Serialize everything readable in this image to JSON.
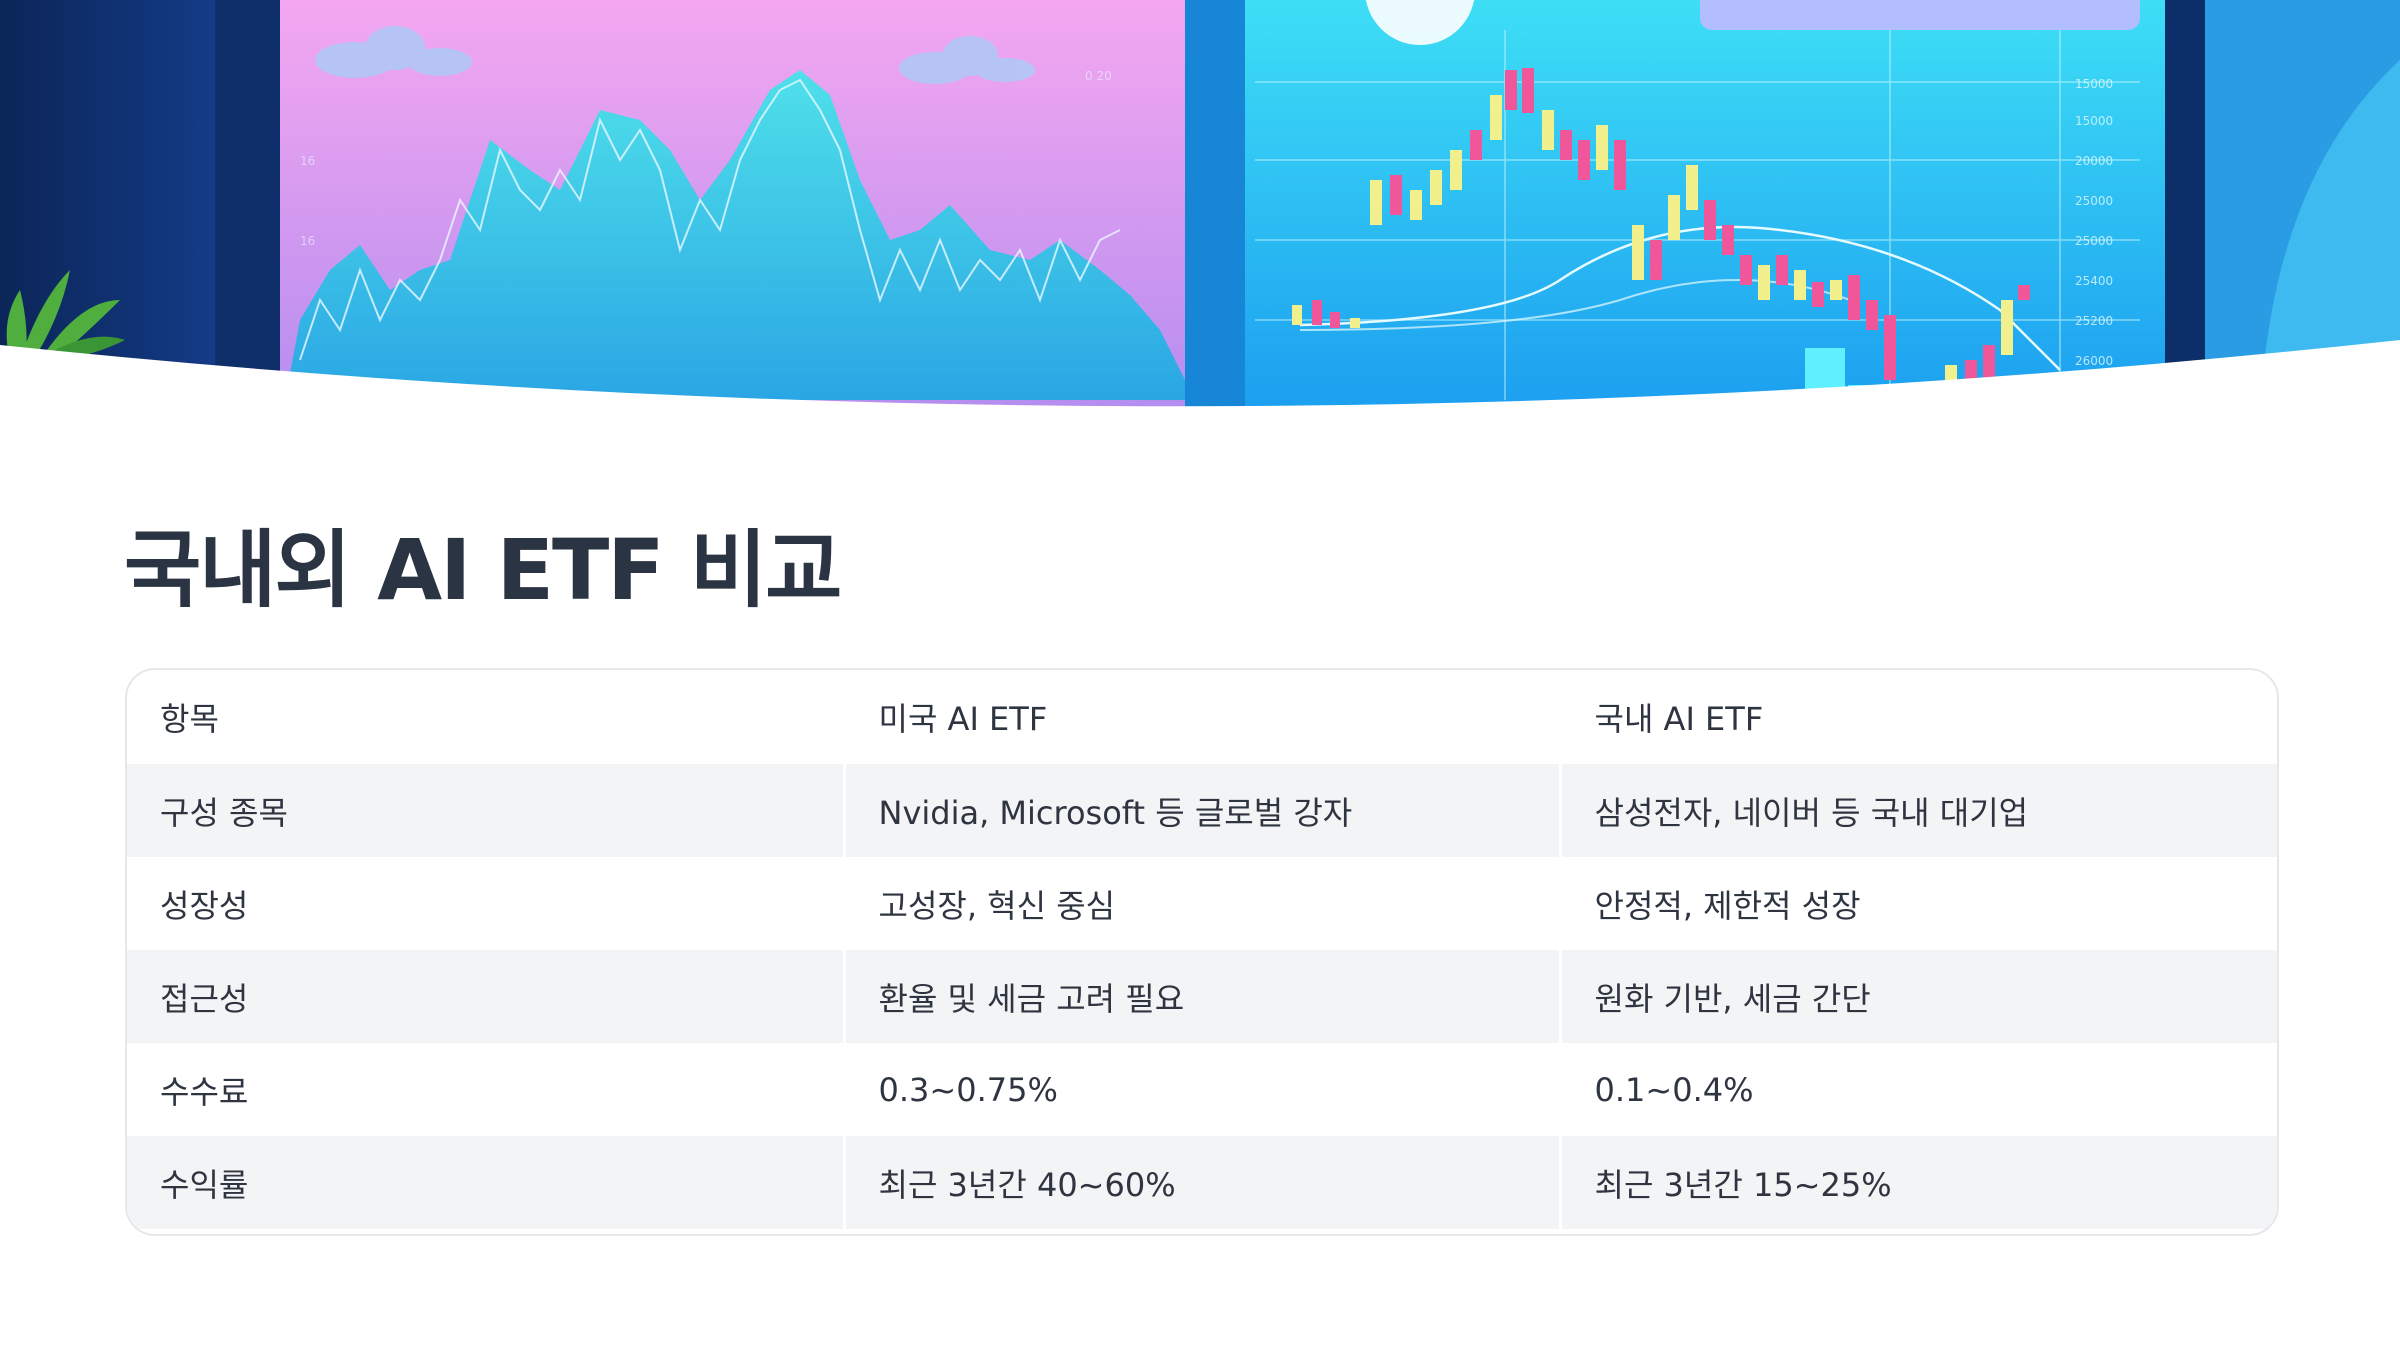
{
  "title": "국내외 AI ETF 비교",
  "hero": {
    "description": "",
    "colors": {
      "left_panel": "#f3a4ee",
      "right_panel": "#38d2f5",
      "candle_up": "#f2f08c",
      "candle_down": "#f0569a"
    }
  },
  "table": {
    "headers": [
      "항목",
      "미국 AI ETF",
      "국내 AI ETF"
    ],
    "rows": [
      [
        "구성 종목",
        "Nvidia, Microsoft 등 글로벌 강자",
        "삼성전자, 네이버 등 국내 대기업"
      ],
      [
        "성장성",
        "고성장, 혁신 중심",
        "안정적, 제한적 성장"
      ],
      [
        "접근성",
        "환율 및 세금 고려 필요",
        "원화 기반, 세금 간단"
      ],
      [
        "수수료",
        "0.3~0.75%",
        "0.1~0.4%"
      ],
      [
        "수익률",
        "최근 3년간 40~60%",
        "최근 3년간 15~25%"
      ]
    ],
    "colors": {
      "border": "#e6e7ea",
      "alt_row": "#f3f4f5",
      "text": "#2e3440"
    }
  }
}
